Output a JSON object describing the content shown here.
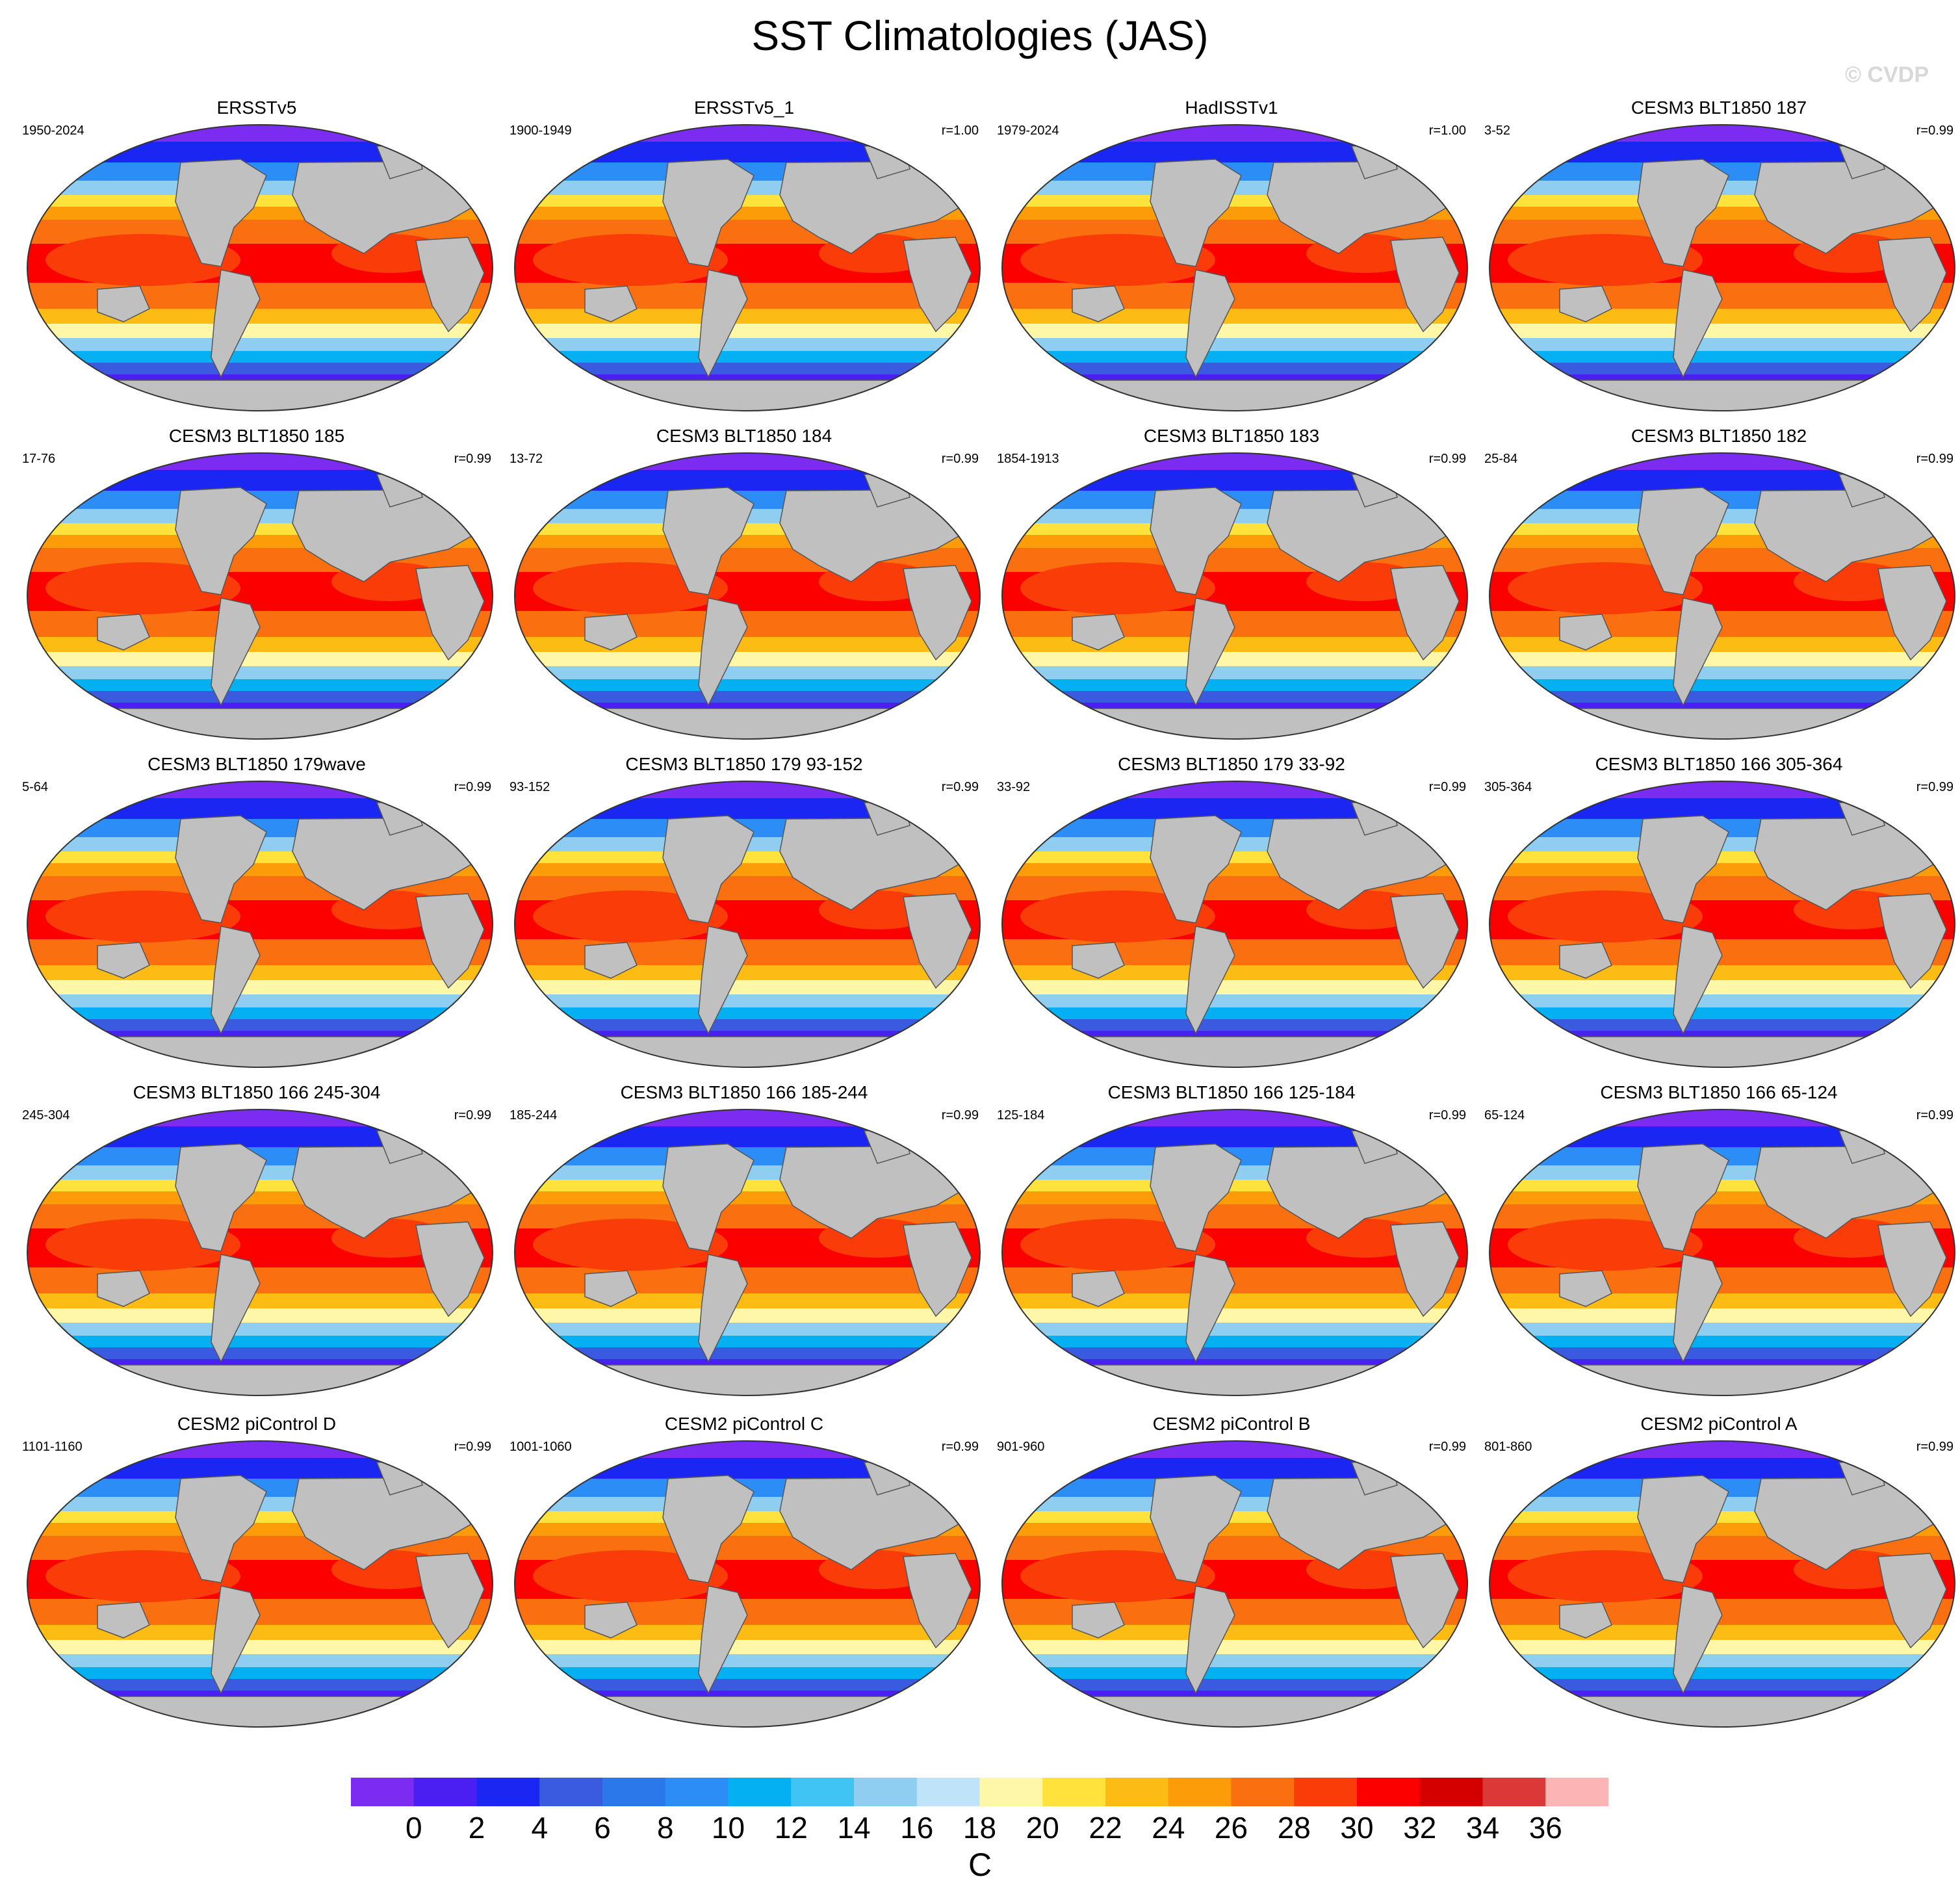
{
  "figure": {
    "title": "SST Climatologies (JAS)",
    "watermark": "© CVDP",
    "units": "C"
  },
  "panels": [
    {
      "title": "ERSSTv5",
      "period": "1950-2024",
      "corr": ""
    },
    {
      "title": "ERSSTv5_1",
      "period": "1900-1949",
      "corr": "r=1.00"
    },
    {
      "title": "HadISSTv1",
      "period": "1979-2024",
      "corr": "r=1.00"
    },
    {
      "title": "CESM3 BLT1850 187",
      "period": "3-52",
      "corr": "r=0.99"
    },
    {
      "title": "CESM3 BLT1850 185",
      "period": "17-76",
      "corr": "r=0.99"
    },
    {
      "title": "CESM3 BLT1850 184",
      "period": "13-72",
      "corr": "r=0.99"
    },
    {
      "title": "CESM3 BLT1850 183",
      "period": "1854-1913",
      "corr": "r=0.99"
    },
    {
      "title": "CESM3 BLT1850 182",
      "period": "25-84",
      "corr": "r=0.99"
    },
    {
      "title": "CESM3 BLT1850 179wave",
      "period": "5-64",
      "corr": "r=0.99"
    },
    {
      "title": "CESM3 BLT1850 179 93-152",
      "period": "93-152",
      "corr": "r=0.99"
    },
    {
      "title": "CESM3 BLT1850 179 33-92",
      "period": "33-92",
      "corr": "r=0.99"
    },
    {
      "title": "CESM3 BLT1850 166 305-364",
      "period": "305-364",
      "corr": "r=0.99"
    },
    {
      "title": "CESM3 BLT1850 166 245-304",
      "period": "245-304",
      "corr": "r=0.99"
    },
    {
      "title": "CESM3 BLT1850 166 185-244",
      "period": "185-244",
      "corr": "r=0.99"
    },
    {
      "title": "CESM3 BLT1850 166 125-184",
      "period": "125-184",
      "corr": "r=0.99"
    },
    {
      "title": "CESM3 BLT1850 166 65-124",
      "period": "65-124",
      "corr": "r=0.99"
    },
    {
      "title": "CESM2 piControl D",
      "period": "1101-1160",
      "corr": "r=0.99"
    },
    {
      "title": "CESM2 piControl C",
      "period": "1001-1060",
      "corr": "r=0.99"
    },
    {
      "title": "CESM2 piControl B",
      "period": "901-960",
      "corr": "r=0.99"
    },
    {
      "title": "CESM2 piControl A",
      "period": "801-860",
      "corr": "r=0.99"
    }
  ],
  "colorbar": {
    "ticks": [
      "0",
      "2",
      "4",
      "6",
      "8",
      "10",
      "12",
      "14",
      "16",
      "18",
      "20",
      "22",
      "24",
      "26",
      "28",
      "30",
      "32",
      "34",
      "36"
    ],
    "colors": [
      "#7b2cf0",
      "#4a1ff2",
      "#1a27f2",
      "#3a5be0",
      "#2a78ea",
      "#2b8df5",
      "#04b0f2",
      "#3fc4f4",
      "#8fcef0",
      "#bfe3f8",
      "#fff7a8",
      "#ffe23c",
      "#fcbc14",
      "#fc9c08",
      "#fa7010",
      "#fa3c08",
      "#fc0000",
      "#d40000",
      "#dc3838",
      "#fdb4b4"
    ]
  },
  "colors": {
    "land": "#c0c0c0",
    "polar": "#7b2cf0",
    "background": "#ffffff"
  }
}
